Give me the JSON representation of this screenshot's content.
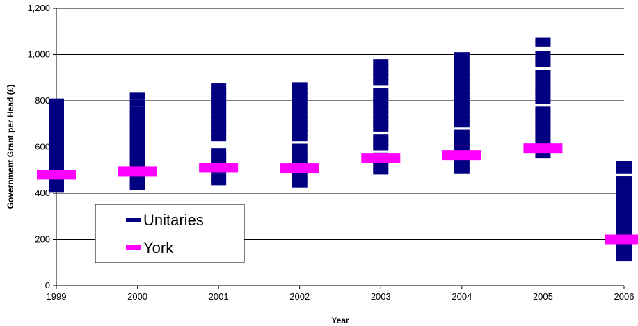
{
  "chart_data": {
    "type": "scatter",
    "xlabel": "Year",
    "ylabel": "Government Grant per Head (£)",
    "categories": [
      "1999",
      "2000",
      "2001",
      "2002",
      "2003",
      "2004",
      "2005",
      "2006"
    ],
    "ylim": [
      0,
      1200
    ],
    "yticks": [
      0,
      200,
      400,
      600,
      800,
      1000,
      1200
    ],
    "ytick_labels": [
      "0",
      "200",
      "400",
      "600",
      "800",
      "1,000",
      "1,200"
    ],
    "grid": true,
    "legend_position": "left",
    "series": [
      {
        "name": "Unitaries",
        "color": "#000080",
        "values": [
          [
            420,
            440,
            460,
            500,
            520,
            540,
            560,
            580,
            600,
            620,
            640,
            660,
            680,
            700,
            720,
            740,
            760,
            780,
            795
          ],
          [
            430,
            445,
            470,
            500,
            520,
            540,
            560,
            580,
            600,
            620,
            640,
            660,
            680,
            700,
            720,
            740,
            760,
            790,
            820
          ],
          [
            450,
            470,
            500,
            520,
            540,
            560,
            580,
            640,
            660,
            680,
            700,
            720,
            740,
            760,
            780,
            800,
            820,
            840,
            860
          ],
          [
            440,
            460,
            480,
            520,
            540,
            560,
            580,
            600,
            640,
            660,
            680,
            700,
            720,
            740,
            760,
            780,
            800,
            820,
            840,
            865
          ],
          [
            495,
            520,
            540,
            560,
            600,
            620,
            640,
            680,
            700,
            720,
            740,
            760,
            780,
            800,
            820,
            840,
            880,
            900,
            920,
            940,
            965
          ],
          [
            500,
            520,
            540,
            560,
            600,
            620,
            640,
            660,
            700,
            720,
            740,
            760,
            780,
            800,
            820,
            840,
            860,
            880,
            900,
            920,
            950,
            970,
            995
          ],
          [
            565,
            620,
            640,
            660,
            680,
            700,
            720,
            740,
            760,
            800,
            820,
            840,
            860,
            880,
            900,
            920,
            960,
            980,
            1000,
            1050,
            1060
          ],
          [
            120,
            140,
            160,
            180,
            200,
            220,
            240,
            260,
            280,
            300,
            320,
            340,
            360,
            380,
            400,
            420,
            440,
            460,
            500,
            525
          ]
        ]
      },
      {
        "name": "York",
        "color": "#FF00FF",
        "values": [
          480,
          495,
          510,
          508,
          553,
          565,
          595,
          200
        ]
      }
    ]
  }
}
